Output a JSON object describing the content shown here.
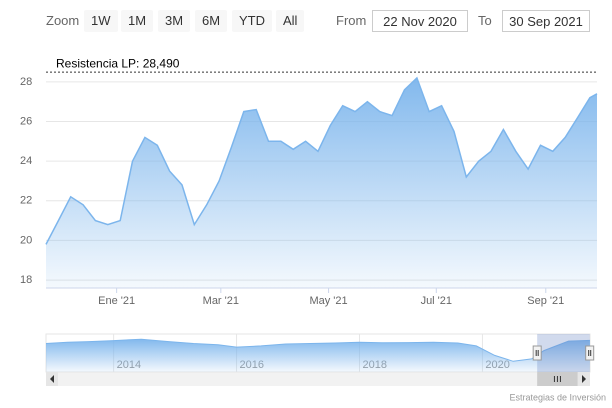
{
  "range_selector": {
    "label": "Zoom",
    "buttons": [
      "1W",
      "1M",
      "3M",
      "6M",
      "YTD",
      "All"
    ],
    "from_label": "From",
    "from": "22 Nov 2020",
    "to_label": "To",
    "to": "30 Sep 2021"
  },
  "chart_data": [
    {
      "type": "area",
      "color": "#7cb5ec",
      "x": [
        "2020-11-22",
        "2020-11-29",
        "2020-12-06",
        "2020-12-13",
        "2020-12-20",
        "2020-12-27",
        "2021-01-03",
        "2021-01-10",
        "2021-01-17",
        "2021-01-24",
        "2021-01-31",
        "2021-02-07",
        "2021-02-14",
        "2021-02-21",
        "2021-02-28",
        "2021-03-07",
        "2021-03-14",
        "2021-03-21",
        "2021-03-28",
        "2021-04-04",
        "2021-04-11",
        "2021-04-18",
        "2021-04-25",
        "2021-05-02",
        "2021-05-09",
        "2021-05-16",
        "2021-05-23",
        "2021-05-30",
        "2021-06-06",
        "2021-06-13",
        "2021-06-20",
        "2021-06-27",
        "2021-07-04",
        "2021-07-11",
        "2021-07-18",
        "2021-07-25",
        "2021-08-01",
        "2021-08-08",
        "2021-08-15",
        "2021-08-22",
        "2021-08-29",
        "2021-09-05",
        "2021-09-12",
        "2021-09-19",
        "2021-09-26",
        "2021-09-30"
      ],
      "values": [
        19.8,
        21.0,
        22.2,
        21.8,
        21.0,
        20.8,
        21.0,
        24.0,
        25.2,
        24.8,
        23.5,
        22.8,
        20.8,
        21.8,
        23.0,
        24.7,
        26.5,
        26.6,
        25.0,
        25.0,
        24.6,
        25.0,
        24.5,
        25.8,
        26.8,
        26.5,
        27.0,
        26.5,
        26.3,
        27.6,
        28.2,
        26.5,
        26.8,
        25.5,
        23.2,
        24.0,
        24.5,
        25.6,
        24.5,
        23.6,
        24.8,
        24.5,
        25.2,
        26.2,
        27.2,
        27.4
      ],
      "xlim": [
        "2020-11-22",
        "2021-09-30"
      ],
      "xticks": [
        {
          "value": "2021-01-01",
          "label": "Ene '21"
        },
        {
          "value": "2021-03-01",
          "label": "Mar '21"
        },
        {
          "value": "2021-05-01",
          "label": "May '21"
        },
        {
          "value": "2021-07-01",
          "label": "Jul '21"
        },
        {
          "value": "2021-09-01",
          "label": "Sep '21"
        }
      ],
      "ylim": [
        17.6,
        28.6
      ],
      "yticks": [
        18,
        20,
        22,
        24,
        26,
        28
      ],
      "grid": true,
      "plot_lines": [
        {
          "value": 28.49,
          "label": "Resistencia LP: 28,490"
        }
      ]
    },
    {
      "type": "area",
      "color": "#7cb5ec",
      "x": [
        2012.9,
        2013.25,
        2013.6,
        2014.0,
        2014.45,
        2014.9,
        2015.3,
        2015.7,
        2016.0,
        2016.4,
        2016.8,
        2017.2,
        2017.6,
        2018.0,
        2018.4,
        2018.8,
        2019.2,
        2019.6,
        2019.9,
        2020.2,
        2020.5,
        2020.8,
        2021.0,
        2021.4,
        2021.75
      ],
      "values": [
        26,
        26.5,
        26.8,
        27.2,
        27.8,
        26.8,
        26,
        25.5,
        24.5,
        25,
        25.8,
        26,
        26.2,
        26.5,
        26.3,
        26.4,
        26.5,
        26.2,
        25,
        21,
        18.5,
        19.5,
        23,
        27,
        27.3
      ],
      "xlim": [
        2012.9,
        2021.75
      ],
      "ylim": [
        14,
        30
      ],
      "xticks": [
        2014,
        2016,
        2018,
        2020
      ]
    }
  ],
  "credits": "Estrategias de Inversión"
}
